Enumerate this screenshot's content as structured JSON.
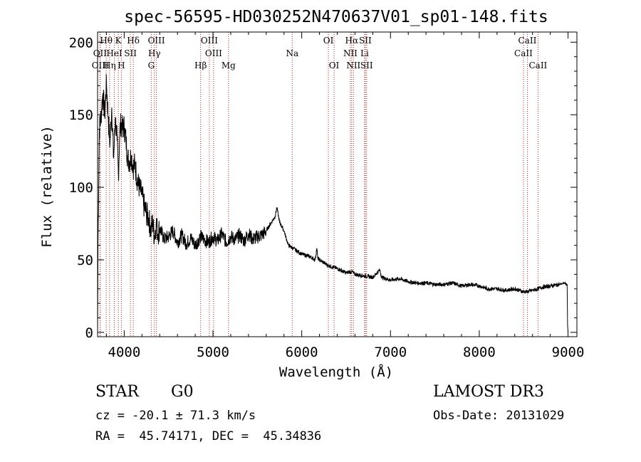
{
  "chart_data": {
    "type": "line",
    "title": "spec-56595-HD030252N470637V01_sp01-148.fits",
    "xlabel": "Wavelength (Å)",
    "ylabel": "Flux (relative)",
    "xlim": [
      3700,
      9100
    ],
    "ylim": [
      -3,
      207
    ],
    "xticks": [
      4000,
      5000,
      6000,
      7000,
      8000,
      9000
    ],
    "yticks": [
      0,
      50,
      100,
      150,
      200
    ],
    "grid": false,
    "series": [
      {
        "name": "spectrum",
        "x": [
          3700,
          3705,
          3720,
          3740,
          3760,
          3780,
          3800,
          3820,
          3840,
          3860,
          3880,
          3900,
          3920,
          3935,
          3950,
          3965,
          3980,
          4000,
          4020,
          4040,
          4060,
          4080,
          4101,
          4120,
          4150,
          4180,
          4200,
          4220,
          4250,
          4280,
          4300,
          4320,
          4340,
          4360,
          4380,
          4400,
          4450,
          4500,
          4550,
          4600,
          4650,
          4700,
          4750,
          4800,
          4861,
          4900,
          4950,
          5000,
          5050,
          5100,
          5150,
          5200,
          5250,
          5300,
          5350,
          5400,
          5450,
          5500,
          5550,
          5600,
          5650,
          5700,
          5720,
          5750,
          5800,
          5850,
          5900,
          5950,
          6000,
          6100,
          6150,
          6170,
          6180,
          6200,
          6300,
          6400,
          6500,
          6563,
          6600,
          6700,
          6800,
          6880,
          6900,
          7000,
          7100,
          7200,
          7300,
          7400,
          7500,
          7600,
          7700,
          7800,
          7900,
          8000,
          8100,
          8200,
          8300,
          8400,
          8498,
          8542,
          8600,
          8662,
          8700,
          8800,
          8900,
          8960,
          8990,
          8995,
          9000
        ],
        "y": [
          0,
          62,
          140,
          150,
          165,
          150,
          172,
          148,
          130,
          155,
          120,
          148,
          132,
          108,
          138,
          145,
          140,
          142,
          132,
          120,
          118,
          122,
          114,
          116,
          104,
          98,
          95,
          88,
          82,
          78,
          70,
          76,
          66,
          75,
          68,
          72,
          64,
          66,
          70,
          62,
          67,
          61,
          65,
          60,
          66,
          64,
          62,
          66,
          63,
          68,
          62,
          66,
          64,
          67,
          63,
          68,
          64,
          66,
          67,
          70,
          75,
          80,
          86,
          76,
          70,
          60,
          58,
          56,
          54,
          52,
          50,
          58,
          51,
          50,
          46,
          44,
          41,
          42,
          40,
          39,
          38,
          43,
          38,
          36,
          37,
          35,
          34,
          34,
          33,
          33,
          34,
          32,
          33,
          32,
          30,
          30,
          29,
          30,
          28,
          28,
          29,
          30,
          31,
          32,
          33,
          34,
          33,
          5,
          0
        ]
      }
    ],
    "lines": [
      {
        "label": "Hθ",
        "x": 3797,
        "row": 0
      },
      {
        "label": "K",
        "x": 3934,
        "row": 0
      },
      {
        "label": "Hδ",
        "x": 4102,
        "row": 0
      },
      {
        "label": "OIII",
        "x": 4363,
        "row": 0
      },
      {
        "label": "OIII",
        "x": 4959,
        "row": 0
      },
      {
        "label": "OI",
        "x": 6300,
        "row": 0
      },
      {
        "label": "Hα",
        "x": 6563,
        "row": 0
      },
      {
        "label": "SII",
        "x": 6716,
        "row": 0
      },
      {
        "label": "CaII",
        "x": 8542,
        "row": 0
      },
      {
        "label": "OII",
        "x": 3727,
        "row": 1
      },
      {
        "label": "HeI",
        "x": 3889,
        "row": 1
      },
      {
        "label": "SII",
        "x": 4070,
        "row": 1
      },
      {
        "label": "Hγ",
        "x": 4340,
        "row": 1
      },
      {
        "label": "OIII",
        "x": 5007,
        "row": 1
      },
      {
        "label": "Na",
        "x": 5893,
        "row": 1
      },
      {
        "label": "NII",
        "x": 6548,
        "row": 1
      },
      {
        "label": "Li",
        "x": 6708,
        "row": 1
      },
      {
        "label": "CaII",
        "x": 8498,
        "row": 1
      },
      {
        "label": "OIII",
        "x": 3730,
        "row": 2
      },
      {
        "label": "Hη",
        "x": 3835,
        "row": 2
      },
      {
        "label": "H",
        "x": 3968,
        "row": 2
      },
      {
        "label": "G",
        "x": 4305,
        "row": 2
      },
      {
        "label": "Hβ",
        "x": 4861,
        "row": 2
      },
      {
        "label": "Mg",
        "x": 5175,
        "row": 2
      },
      {
        "label": "OI",
        "x": 6364,
        "row": 2
      },
      {
        "label": "NII",
        "x": 6583,
        "row": 2
      },
      {
        "label": "SII",
        "x": 6731,
        "row": 2
      },
      {
        "label": "CaII",
        "x": 8662,
        "row": 2
      }
    ]
  },
  "info": {
    "class": "STAR",
    "subclass": "G0",
    "survey": "LAMOST DR3",
    "cz": "cz = -20.1 ± 71.3 km/s",
    "obs_date": "Obs-Date: 20131029",
    "radec": "RA =  45.74171, DEC =  45.34836"
  },
  "colors": {
    "line_marker": "#b22222",
    "spectrum": "#000000"
  }
}
